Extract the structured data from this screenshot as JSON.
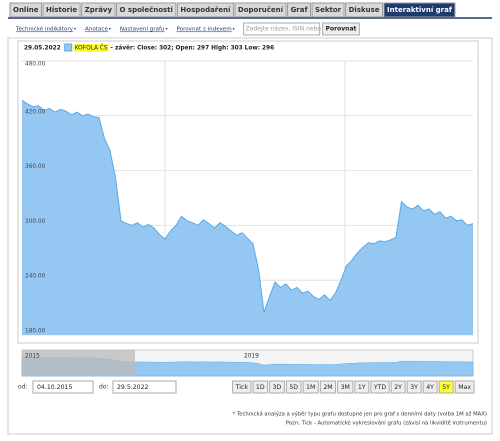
{
  "tabs": [
    "Online",
    "Historie",
    "Zprávy",
    "O společnosti",
    "Hospodaření",
    "Doporučení",
    "Graf",
    "Sektor",
    "Diskuse",
    "Interaktivní graf"
  ],
  "active_tab": 9,
  "toolbar": {
    "links": [
      "Technické indikátory",
      "Anotace",
      "Nastavení grafu",
      "Porovnat s indexem"
    ],
    "search_placeholder": "Zadejte název, ISIN nebo",
    "compare_button": "Porovnat"
  },
  "chart_data": {
    "type": "area",
    "date_label": "29.05.2022",
    "legend_detail": "- závěr: Close: 302; Open: 297 High: 303 Low: 296",
    "series": [
      {
        "name": "KOFOLA ČS",
        "color": "#5aa8e6",
        "fill": "#94c8f3",
        "values": [
          437,
          433,
          430,
          431,
          426,
          428,
          424,
          427,
          425,
          421,
          424,
          420,
          422,
          419,
          418,
          395,
          382,
          352,
          305,
          302,
          300,
          303,
          298,
          301,
          297,
          290,
          285,
          294,
          300,
          310,
          305,
          303,
          300,
          306,
          302,
          297,
          303,
          299,
          294,
          289,
          292,
          286,
          280,
          252,
          205,
          222,
          238,
          232,
          236,
          229,
          232,
          226,
          228,
          222,
          219,
          224,
          218,
          226,
          240,
          256,
          262,
          270,
          276,
          281,
          280,
          283,
          282,
          284,
          287,
          326,
          320,
          318,
          322,
          316,
          318,
          312,
          315,
          308,
          310,
          305,
          306,
          300,
          302
        ]
      }
    ],
    "ylim": [
      180,
      480
    ],
    "yticks": [
      {
        "value": 180,
        "label": "180.00"
      },
      {
        "value": 240,
        "label": "240.00"
      },
      {
        "value": 300,
        "label": "300.00"
      },
      {
        "value": 360,
        "label": "360.00"
      },
      {
        "value": 420,
        "label": "420.00"
      },
      {
        "value": 480,
        "label": "480.00"
      }
    ],
    "grid": true
  },
  "navigator": {
    "labels": [
      "2015",
      "2019"
    ]
  },
  "range": {
    "from_label": "od:",
    "from": "04.10.2015",
    "to_label": "do:",
    "to": "29.5.2022"
  },
  "buttons": [
    "Tick",
    "1D",
    "3D",
    "5D",
    "1M",
    "2M",
    "3M",
    "1Y",
    "YTD",
    "2Y",
    "3Y",
    "4Y",
    "5Y",
    "Max"
  ],
  "active_button": 12,
  "notes": [
    "* Technická analýza a výběr typu grafu dostupné jen pro graf s denními daty (volba 1M až MAX)",
    "Pozn: Tick - Automatické vykreslování grafu (závisí na likviditě instrumentu)"
  ]
}
